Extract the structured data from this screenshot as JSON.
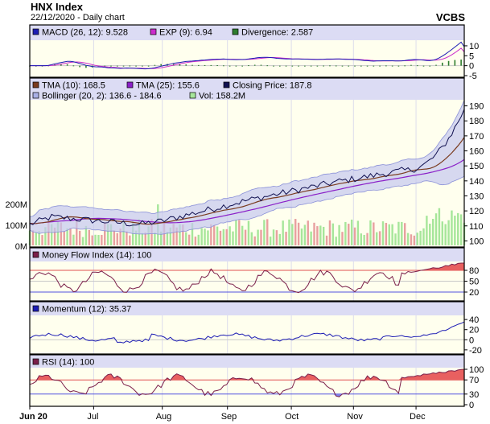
{
  "header": {
    "title": "HNX Index",
    "subtitle": "22/12/2020 - Daily chart",
    "brand": "VCBS"
  },
  "chart_data": [
    {
      "panel": "macd",
      "type": "line",
      "legend": [
        {
          "label": "MACD (26, 12): 9.528",
          "color": "#1c1cb4"
        },
        {
          "label": "EXP (9): 6.94",
          "color": "#cc2ccc"
        },
        {
          "label": "Divergence: 2.587",
          "color": "#2e7d2e"
        }
      ],
      "y_ticks": [
        "10",
        "5",
        "0",
        "-5"
      ],
      "ylim": [
        -5,
        12
      ],
      "last_values": {
        "macd": 9.528,
        "exp": 6.94,
        "divergence": 2.587
      }
    },
    {
      "panel": "price",
      "type": "line",
      "legend": [
        {
          "label": "TMA (10): 168.5",
          "color": "#7a3b1e"
        },
        {
          "label": "TMA (25): 155.6",
          "color": "#8a1fc8"
        },
        {
          "label": "Closing Price: 187.8",
          "color": "#101050"
        },
        {
          "label": "Bollinger (20, 2): 136.6 - 184.6",
          "color": "#aab0e6"
        },
        {
          "label": "Vol: 158.2M",
          "color": "#a6e69a"
        }
      ],
      "y_ticks": [
        "190",
        "180",
        "170",
        "160",
        "150",
        "140",
        "130",
        "120",
        "110",
        "100"
      ],
      "ylim": [
        97,
        193
      ],
      "volume_ticks": [
        "200M",
        "100M",
        "0M"
      ],
      "last_values": {
        "tma10": 168.5,
        "tma25": 155.6,
        "close": 187.8,
        "boll_low": 136.6,
        "boll_high": 184.6,
        "volume_m": 158.2
      }
    },
    {
      "panel": "mfi",
      "type": "line",
      "legend": [
        {
          "label": "Money Flow Index (14): 100",
          "color": "#7a1f4a"
        }
      ],
      "y_ticks": [
        "80",
        "50",
        "20"
      ],
      "ylim": [
        0,
        100
      ],
      "last_value": 100
    },
    {
      "panel": "momentum",
      "type": "line",
      "legend": [
        {
          "label": "Momentum (12): 35.37",
          "color": "#1c1cb4"
        }
      ],
      "y_ticks": [
        "40",
        "20",
        "0",
        "-20"
      ],
      "ylim": [
        -25,
        45
      ],
      "last_value": 35.37
    },
    {
      "panel": "rsi",
      "type": "line",
      "legend": [
        {
          "label": "RSI (14): 100",
          "color": "#7a1f4a"
        }
      ],
      "y_ticks": [
        "100",
        "70",
        "30",
        "0"
      ],
      "ylim": [
        0,
        100
      ],
      "last_value": 100
    }
  ],
  "x_axis": {
    "labels": [
      "Jun 20",
      "Jul",
      "Aug",
      "Sep",
      "Oct",
      "Nov",
      "Dec"
    ]
  }
}
